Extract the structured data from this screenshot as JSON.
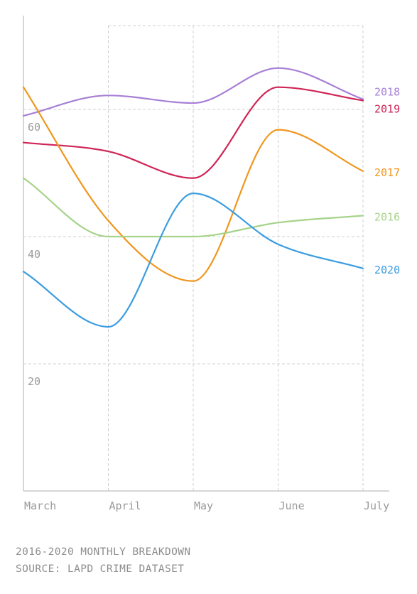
{
  "chart_data": {
    "type": "line",
    "categories": [
      "March",
      "April",
      "May",
      "June",
      "July"
    ],
    "yticks": [
      20,
      40,
      60
    ],
    "ylim": [
      0,
      75
    ],
    "grid": true,
    "legend": "inline-right",
    "series": [
      {
        "name": "2018",
        "color": "#a77fd6",
        "values": [
          59,
          62.2,
          61,
          66.5,
          61.6
        ]
      },
      {
        "name": "2019",
        "color": "#cf2456",
        "values": [
          54.8,
          53.4,
          49.2,
          63.5,
          61.4
        ]
      },
      {
        "name": "2017",
        "color": "#f0961e",
        "values": [
          63.5,
          42.5,
          33,
          56.8,
          50.3
        ]
      },
      {
        "name": "2016",
        "color": "#a6d38a",
        "values": [
          49.2,
          40,
          40,
          42.2,
          43.3
        ]
      },
      {
        "name": "2020",
        "color": "#3b9ce0",
        "values": [
          34.5,
          25.8,
          46.8,
          38.8,
          35
        ]
      }
    ]
  },
  "footer": {
    "line1": "2016-2020 MONTHLY BREAKDOWN",
    "line2": "SOURCE: LAPD CRIME DATASET"
  }
}
